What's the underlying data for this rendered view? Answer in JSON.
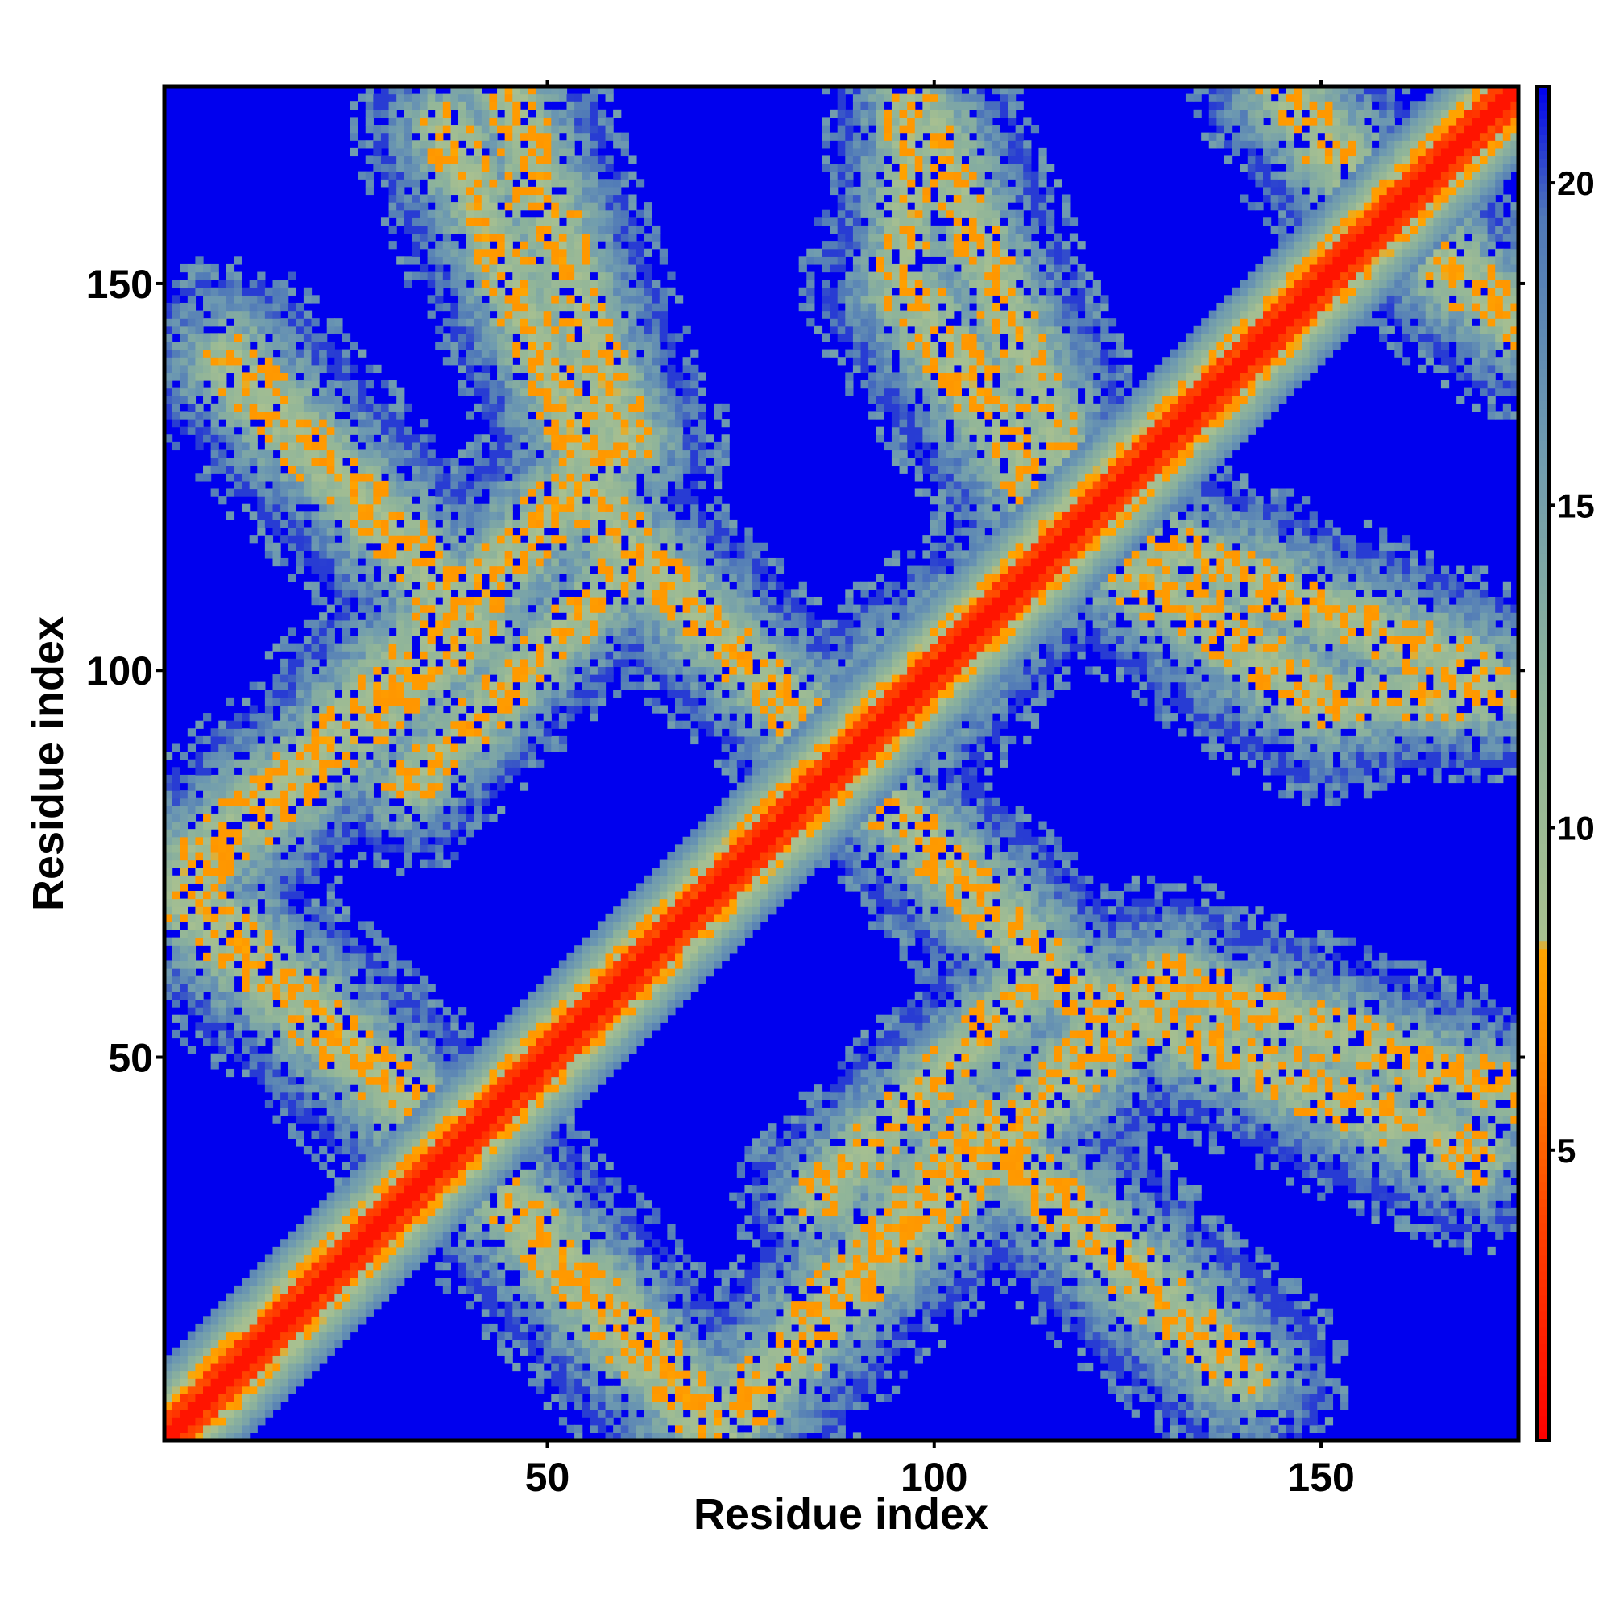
{
  "chart_data": {
    "type": "heatmap",
    "title": "",
    "xlabel": "Residue index",
    "ylabel": "Residue index",
    "xlim": [
      0.5,
      175.5
    ],
    "ylim": [
      0.5,
      175.5
    ],
    "x_ticks": [
      50,
      100,
      150
    ],
    "y_ticks": [
      50,
      100,
      150
    ],
    "x_tick_labels": [
      "50",
      "100",
      "150"
    ],
    "y_tick_labels": [
      "50",
      "100",
      "150"
    ],
    "grid": false,
    "n_residues": 175,
    "colorbar": {
      "range": [
        0.5,
        21.5
      ],
      "ticks": [
        5,
        10,
        15,
        20
      ],
      "tick_labels": [
        "5",
        "10",
        "15",
        "20"
      ],
      "colors": [
        {
          "value": 0.5,
          "color": "#ff0000"
        },
        {
          "value": 4.0,
          "color": "#ff4500"
        },
        {
          "value": 6.5,
          "color": "#ff8c00"
        },
        {
          "value": 8.1,
          "color": "#ffa500"
        },
        {
          "value": 8.3,
          "color": "#a8c090"
        },
        {
          "value": 12.0,
          "color": "#8fb49a"
        },
        {
          "value": 16.0,
          "color": "#6e9ab0"
        },
        {
          "value": 19.5,
          "color": "#4f78b8"
        },
        {
          "value": 21.5,
          "color": "#0000ee"
        }
      ],
      "background_color": "#0000ee"
    },
    "description": "Symmetric residue-residue distance map: red/orange main diagonal with criss-crossing off-diagonal contact bands (anti-parallel bands at roughly 45-degree orientation) and large blue regions of no contact."
  }
}
